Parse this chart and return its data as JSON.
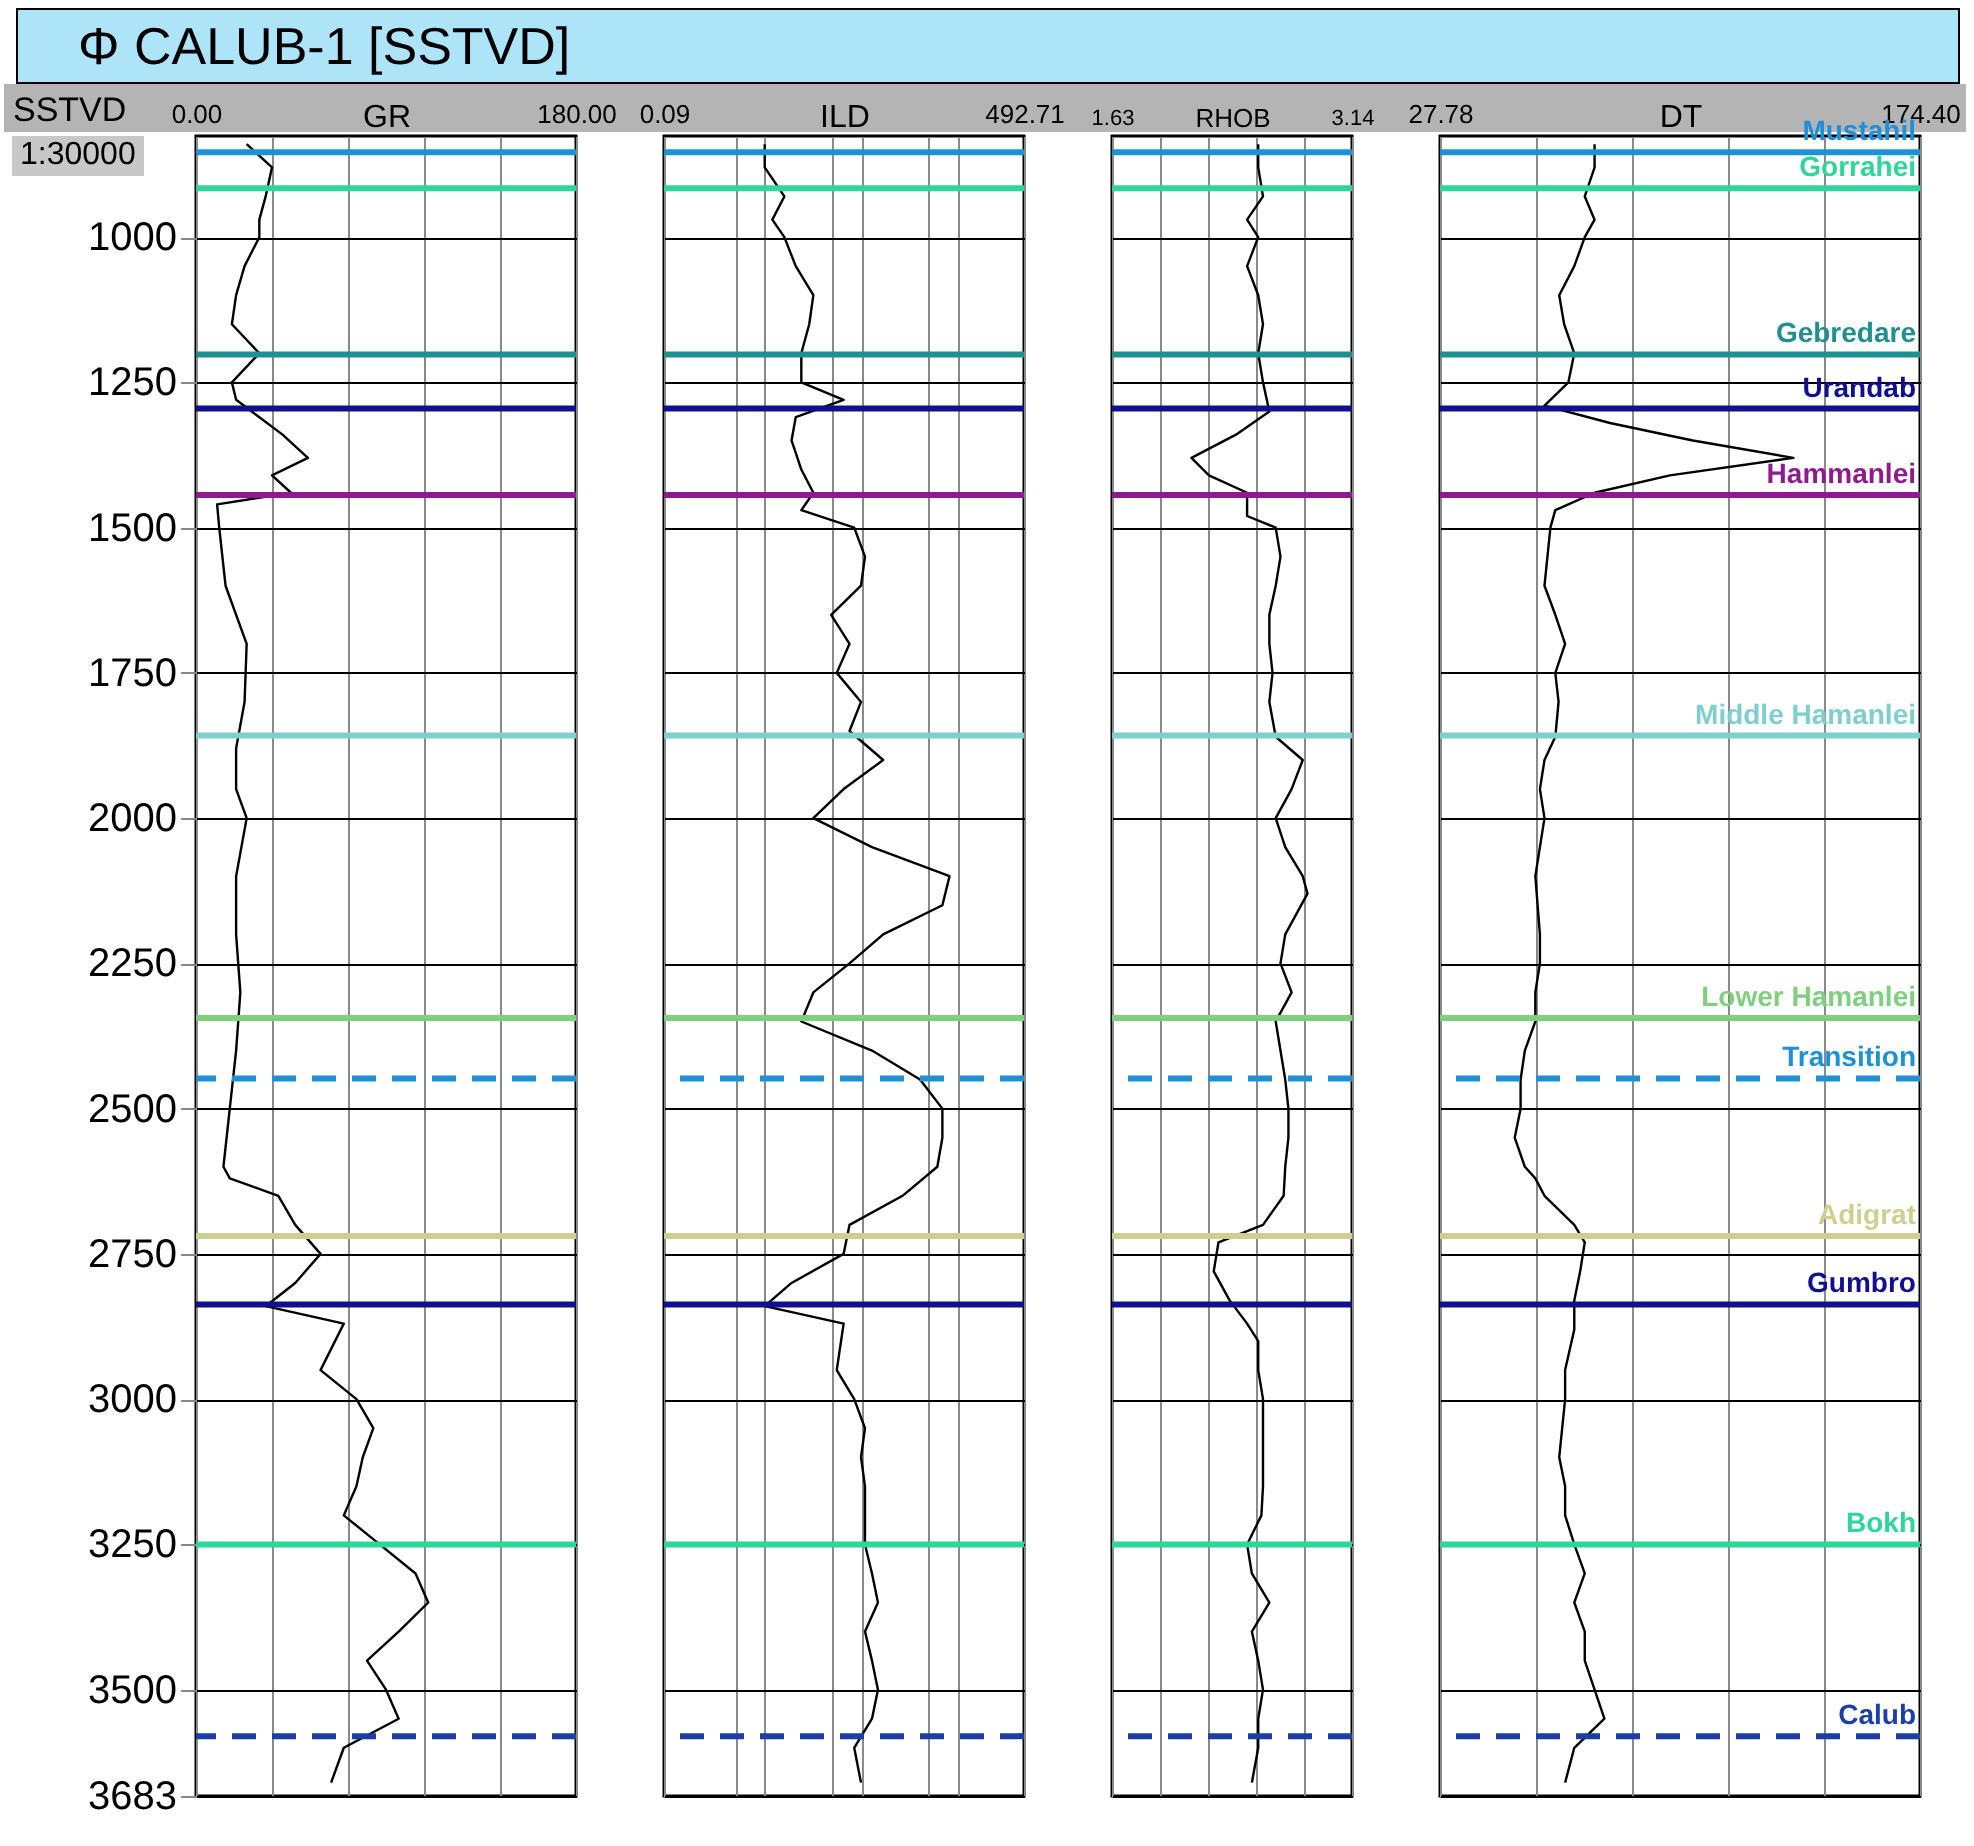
{
  "chart_data": [
    {
      "type": "line",
      "title": "Φ CALUB-1 [SSTVD]",
      "xlabel": "GR",
      "ylabel": "SSTVD",
      "annotations": [
        "1:30000"
      ],
      "xlim": [
        0,
        180
      ],
      "xticks": [
        {
          "value": 0,
          "label": "0.00"
        },
        {
          "value": 36,
          "label": null
        },
        {
          "value": 72,
          "label": null
        },
        {
          "value": 108,
          "label": null
        },
        {
          "value": 144,
          "label": null
        },
        {
          "value": 180,
          "label": "180.00"
        }
      ],
      "ylim": [
        3683,
        826
      ],
      "yticks": [
        1000,
        1250,
        1500,
        1750,
        2000,
        2250,
        2500,
        2750,
        3000,
        3250,
        3500,
        3683
      ],
      "grid": true,
      "series": [
        {
          "color": "#000000",
          "x": [
            24,
            36,
            33,
            30,
            30,
            23,
            19,
            17,
            30,
            17,
            19,
            30,
            41,
            53,
            36,
            45,
            10,
            11,
            14,
            24,
            23,
            19,
            19,
            24,
            19,
            19,
            21,
            19,
            16,
            13,
            16,
            39,
            47,
            59,
            47,
            33,
            70,
            59,
            76,
            84,
            79,
            76,
            70,
            87,
            104,
            110,
            96,
            81,
            90,
            96,
            70,
            64
          ],
          "values": [
            840,
            880,
            930,
            970,
            1000,
            1050,
            1100,
            1150,
            1200,
            1250,
            1280,
            1310,
            1340,
            1380,
            1410,
            1440,
            1460,
            1500,
            1600,
            1700,
            1800,
            1880,
            1950,
            2000,
            2100,
            2200,
            2300,
            2400,
            2500,
            2600,
            2620,
            2650,
            2700,
            2750,
            2800,
            2840,
            2870,
            2950,
            3000,
            3050,
            3100,
            3150,
            3200,
            3250,
            3300,
            3350,
            3400,
            3450,
            3500,
            3550,
            3600,
            3660
          ]
        }
      ],
      "ref_lines": [
        {
          "axis": "y",
          "value": 854,
          "color": "#1e90d8"
        },
        {
          "axis": "y",
          "value": 916,
          "color": "#2ed69a"
        },
        {
          "axis": "y",
          "value": 1202,
          "color": "#1f8f8f"
        },
        {
          "axis": "y",
          "value": 1295,
          "color": "#10108f"
        },
        {
          "axis": "y",
          "value": 1444,
          "color": "#8f1a8f"
        },
        {
          "axis": "y",
          "value": 1858,
          "color": "#7fcfcf"
        },
        {
          "axis": "y",
          "value": 2344,
          "color": "#7fcf7f"
        },
        {
          "axis": "y",
          "value": 2448,
          "color": "#1e90d8",
          "line_style": "dashed"
        },
        {
          "axis": "y",
          "value": 2719,
          "color": "#cfcf8f"
        },
        {
          "axis": "y",
          "value": 2837,
          "color": "#10108f"
        },
        {
          "axis": "y",
          "value": 3250,
          "color": "#2ed69a"
        },
        {
          "axis": "y",
          "value": 3580,
          "color": "#1a3fa8",
          "line_style": "dashed"
        }
      ]
    },
    {
      "type": "line",
      "xlabel": "ILD",
      "log": "x",
      "tick_labels": "x",
      "xlim": [
        0.09,
        492.71
      ],
      "xticks": [
        0.09,
        {
          "value": 0.5,
          "label": null
        },
        {
          "value": 1,
          "label": null
        },
        {
          "value": 5,
          "label": null
        },
        {
          "value": 10,
          "label": null
        },
        {
          "value": 50,
          "label": null
        },
        {
          "value": 100,
          "label": null
        },
        492.71
      ],
      "ylim": [
        3683,
        826
      ],
      "yticks": [
        1000,
        1250,
        1500,
        1750,
        2000,
        2250,
        2500,
        2750,
        3000,
        3250,
        3500,
        3683
      ],
      "grid": true,
      "series": [
        {
          "color": "#000000",
          "x": [
            1,
            1,
            1.6,
            1.2,
            1.6,
            2.1,
            3.2,
            2.9,
            2.4,
            2.4,
            6.6,
            2.1,
            1.9,
            2.4,
            3.2,
            2.4,
            8.5,
            11,
            10,
            4.9,
            7.6,
            5.6,
            10,
            7.6,
            17,
            6.6,
            3.2,
            13,
            83,
            70,
            17,
            7.6,
            3.2,
            2.4,
            13,
            41,
            70,
            70,
            62,
            27,
            7.6,
            6.6,
            1.9,
            1,
            6.6,
            5.6,
            8.5,
            11,
            10,
            11,
            11,
            11,
            13,
            15,
            11,
            13,
            15,
            13,
            8.5,
            10
          ],
          "values": [
            840,
            880,
            930,
            970,
            1000,
            1050,
            1100,
            1150,
            1200,
            1250,
            1280,
            1310,
            1350,
            1400,
            1440,
            1470,
            1500,
            1550,
            1600,
            1650,
            1700,
            1750,
            1800,
            1850,
            1900,
            1950,
            2000,
            2050,
            2100,
            2150,
            2200,
            2250,
            2300,
            2350,
            2400,
            2450,
            2500,
            2550,
            2600,
            2650,
            2700,
            2750,
            2800,
            2840,
            2870,
            2950,
            3000,
            3050,
            3100,
            3150,
            3200,
            3250,
            3300,
            3350,
            3400,
            3450,
            3500,
            3550,
            3600,
            3660
          ]
        }
      ],
      "ref_lines": [
        {
          "axis": "y",
          "value": 854,
          "color": "#1e90d8"
        },
        {
          "axis": "y",
          "value": 916,
          "color": "#2ed69a"
        },
        {
          "axis": "y",
          "value": 1202,
          "color": "#1f8f8f"
        },
        {
          "axis": "y",
          "value": 1295,
          "color": "#10108f"
        },
        {
          "axis": "y",
          "value": 1444,
          "color": "#8f1a8f"
        },
        {
          "axis": "y",
          "value": 1858,
          "color": "#7fcfcf"
        },
        {
          "axis": "y",
          "value": 2344,
          "color": "#7fcf7f"
        },
        {
          "axis": "y",
          "value": 2448,
          "color": "#1e90d8",
          "line_style": "dashed"
        },
        {
          "axis": "y",
          "value": 2719,
          "color": "#cfcf8f"
        },
        {
          "axis": "y",
          "value": 2837,
          "color": "#10108f"
        },
        {
          "axis": "y",
          "value": 3250,
          "color": "#2ed69a"
        },
        {
          "axis": "y",
          "value": 3580,
          "color": "#1a3fa8",
          "line_style": "dashed"
        }
      ]
    },
    {
      "type": "line",
      "xlabel": "RHOB",
      "tick_labels": "x",
      "xlim": [
        1.63,
        3.14
      ],
      "xticks": [
        1.63,
        {
          "value": 1.93,
          "label": null
        },
        {
          "value": 2.24,
          "label": null
        },
        {
          "value": 2.54,
          "label": null
        },
        {
          "value": 2.84,
          "label": null
        },
        3.14
      ],
      "ylim": [
        3683,
        826
      ],
      "yticks": [
        1000,
        1250,
        1500,
        1750,
        2000,
        2250,
        2500,
        2750,
        3000,
        3250,
        3500,
        3683
      ],
      "grid": true,
      "series": [
        {
          "color": "#000000",
          "x": [
            2.55,
            2.55,
            2.58,
            2.48,
            2.55,
            2.48,
            2.55,
            2.58,
            2.55,
            2.58,
            2.62,
            2.41,
            2.13,
            2.24,
            2.48,
            2.48,
            2.66,
            2.69,
            2.66,
            2.62,
            2.62,
            2.64,
            2.62,
            2.66,
            2.83,
            2.76,
            2.66,
            2.72,
            2.83,
            2.86,
            2.72,
            2.69,
            2.76,
            2.66,
            2.69,
            2.72,
            2.74,
            2.74,
            2.72,
            2.71,
            2.58,
            2.3,
            2.27,
            2.37,
            2.48,
            2.55,
            2.55,
            2.58,
            2.58,
            2.58,
            2.58,
            2.57,
            2.48,
            2.51,
            2.62,
            2.51,
            2.55,
            2.58,
            2.55,
            2.55,
            2.51
          ],
          "values": [
            840,
            880,
            930,
            970,
            1000,
            1050,
            1100,
            1150,
            1200,
            1250,
            1300,
            1340,
            1380,
            1410,
            1440,
            1480,
            1500,
            1550,
            1600,
            1650,
            1700,
            1750,
            1800,
            1860,
            1900,
            1950,
            2000,
            2050,
            2100,
            2130,
            2200,
            2250,
            2300,
            2350,
            2400,
            2450,
            2500,
            2550,
            2600,
            2650,
            2700,
            2730,
            2780,
            2830,
            2870,
            2900,
            2950,
            3000,
            3050,
            3100,
            3150,
            3200,
            3250,
            3300,
            3350,
            3400,
            3450,
            3500,
            3550,
            3600,
            3660
          ]
        }
      ],
      "ref_lines": [
        {
          "axis": "y",
          "value": 854,
          "color": "#1e90d8"
        },
        {
          "axis": "y",
          "value": 916,
          "color": "#2ed69a"
        },
        {
          "axis": "y",
          "value": 1202,
          "color": "#1f8f8f"
        },
        {
          "axis": "y",
          "value": 1295,
          "color": "#10108f"
        },
        {
          "axis": "y",
          "value": 1444,
          "color": "#8f1a8f"
        },
        {
          "axis": "y",
          "value": 1858,
          "color": "#7fcfcf"
        },
        {
          "axis": "y",
          "value": 2344,
          "color": "#7fcf7f"
        },
        {
          "axis": "y",
          "value": 2448,
          "color": "#1e90d8",
          "line_style": "dashed"
        },
        {
          "axis": "y",
          "value": 2719,
          "color": "#cfcf8f"
        },
        {
          "axis": "y",
          "value": 2837,
          "color": "#10108f"
        },
        {
          "axis": "y",
          "value": 3250,
          "color": "#2ed69a"
        },
        {
          "axis": "y",
          "value": 3580,
          "color": "#1a3fa8",
          "line_style": "dashed"
        }
      ]
    },
    {
      "type": "line",
      "xlabel": "DT",
      "tick_labels": "x",
      "xlim": [
        27.78,
        174.4
      ],
      "xticks": [
        27.78,
        {
          "value": 57.1,
          "label": null
        },
        {
          "value": 86.4,
          "label": null
        },
        {
          "value": 115.8,
          "label": null
        },
        {
          "value": 145.1,
          "label": null
        },
        {
          "value": 174.4,
          "label": "174.40"
        }
      ],
      "ylim": [
        3683,
        826
      ],
      "yticks": [
        1000,
        1250,
        1500,
        1750,
        2000,
        2250,
        2500,
        2750,
        3000,
        3250,
        3500,
        3683
      ],
      "grid": true,
      "series": [
        {
          "color": "#000000",
          "x": [
            75,
            75,
            72,
            75,
            72,
            68.8,
            64.2,
            65.7,
            68.8,
            67,
            59.7,
            79.7,
            105,
            135.7,
            98,
            75,
            63,
            61.5,
            59.7,
            63,
            66,
            63,
            64,
            63,
            59.7,
            58.3,
            59.7,
            58.3,
            56.9,
            58.3,
            58.3,
            56.9,
            56.9,
            53.7,
            52.4,
            52.4,
            50.6,
            53.7,
            56.9,
            59.7,
            68.8,
            72,
            70.6,
            68.8,
            68.8,
            66,
            66,
            64.2,
            66,
            66,
            68.8,
            72,
            68.8,
            72,
            72,
            75,
            78,
            68.8,
            66
          ],
          "values": [
            840,
            880,
            930,
            970,
            1000,
            1050,
            1100,
            1150,
            1200,
            1250,
            1290,
            1320,
            1350,
            1380,
            1410,
            1440,
            1470,
            1500,
            1600,
            1650,
            1700,
            1750,
            1800,
            1860,
            1900,
            1950,
            2000,
            2050,
            2100,
            2200,
            2250,
            2300,
            2350,
            2400,
            2450,
            2500,
            2550,
            2600,
            2620,
            2650,
            2700,
            2730,
            2780,
            2830,
            2880,
            2950,
            3000,
            3100,
            3150,
            3200,
            3250,
            3300,
            3350,
            3400,
            3450,
            3500,
            3550,
            3600,
            3660
          ]
        }
      ],
      "ref_lines": [
        {
          "axis": "y",
          "value": 854,
          "label": "Mustahil",
          "color": "#1e90d8"
        },
        {
          "axis": "y",
          "value": 916,
          "label": "Gorrahei",
          "color": "#2ed69a"
        },
        {
          "axis": "y",
          "value": 1202,
          "label": "Gebredare",
          "color": "#1f8f8f"
        },
        {
          "axis": "y",
          "value": 1295,
          "label": "Urandab",
          "color": "#10108f"
        },
        {
          "axis": "y",
          "value": 1444,
          "label": "Hammanlei",
          "color": "#8f1a8f"
        },
        {
          "axis": "y",
          "value": 1858,
          "label": "Middle Hamanlei",
          "color": "#7fcfcf"
        },
        {
          "axis": "y",
          "value": 2344,
          "label": "Lower Hamanlei",
          "color": "#7fcf7f"
        },
        {
          "axis": "y",
          "value": 2448,
          "label": "Transition",
          "color": "#1e90d8",
          "line_style": "dashed"
        },
        {
          "axis": "y",
          "value": 2719,
          "label": "Adigrat",
          "color": "#cfcf8f"
        },
        {
          "axis": "y",
          "value": 2837,
          "label": "Gumbro",
          "color": "#10108f"
        },
        {
          "axis": "y",
          "value": 3250,
          "label": "Bokh",
          "color": "#2ed69a"
        },
        {
          "axis": "y",
          "value": 3580,
          "label": "Calub",
          "color": "#1a3fa8",
          "line_style": "dashed"
        }
      ]
    }
  ]
}
